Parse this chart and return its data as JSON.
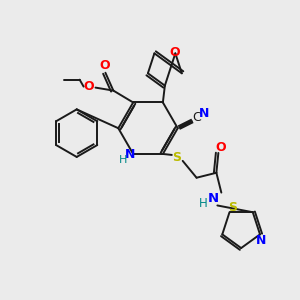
{
  "bg_color": "#ebebeb",
  "bond_color": "#1a1a1a",
  "colors": {
    "O": "#ff0000",
    "N": "#0000ff",
    "S": "#bbbb00",
    "H": "#008888"
  },
  "figsize": [
    3.0,
    3.0
  ],
  "dpi": 100
}
